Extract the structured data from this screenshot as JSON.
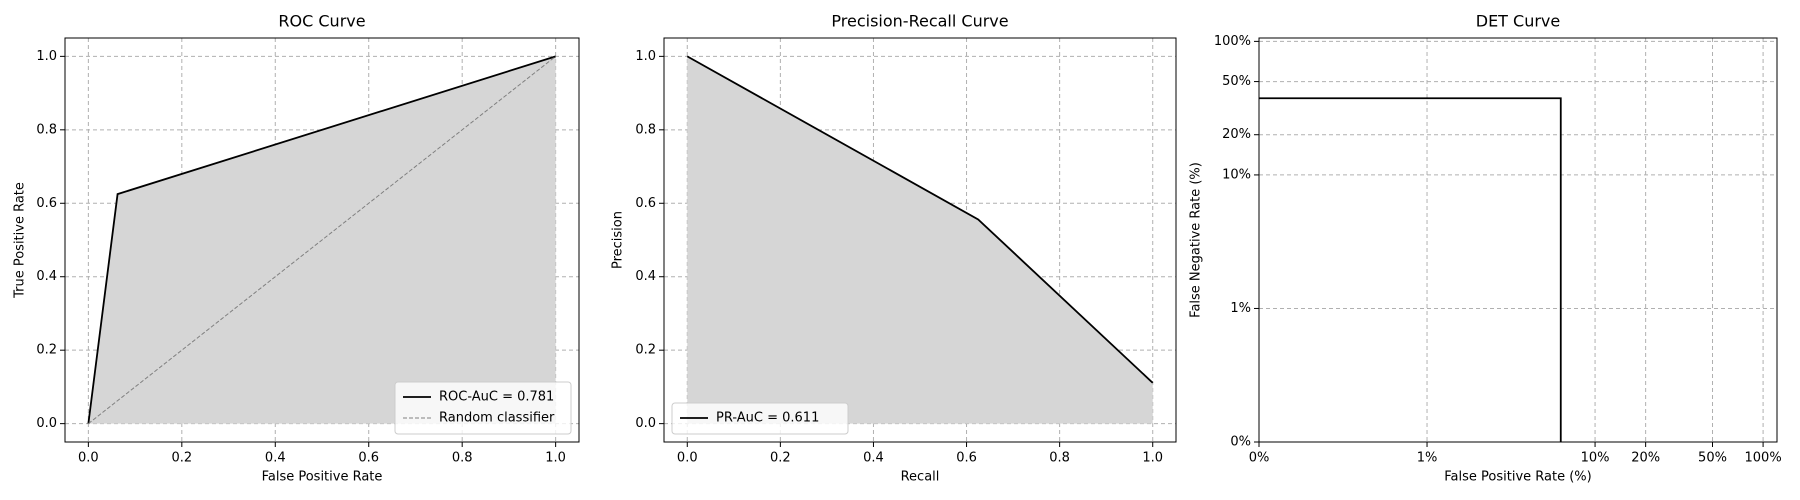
{
  "chart_data": [
    {
      "type": "line",
      "title": "ROC Curve",
      "x_label": "False Positive Rate",
      "y_label": "True Positive Rate",
      "series": [
        {
          "name": "ROC-AuC = 0.781",
          "color": "#000000",
          "style": "solid",
          "fill_color": "#d6d6d6",
          "x": [
            0,
            0.0625,
            1
          ],
          "values": [
            0,
            0.625,
            1
          ]
        },
        {
          "name": "Random classifier",
          "color": "#808080",
          "style": "dashed",
          "x": [
            0,
            1
          ],
          "values": [
            0,
            1
          ]
        }
      ],
      "xlim": [
        -0.05,
        1.05
      ],
      "ylim": [
        -0.05,
        1.05
      ],
      "xticks": [
        {
          "value": 0,
          "label": "0.0"
        },
        0.2,
        0.4,
        0.6,
        0.8,
        {
          "value": 1,
          "label": "1.0"
        }
      ],
      "yticks": [
        {
          "value": 0,
          "label": "0.0"
        },
        0.2,
        0.4,
        0.6,
        0.8,
        {
          "value": 1,
          "label": "1.0"
        }
      ],
      "grid": true,
      "legend": "lower right"
    },
    {
      "type": "line",
      "title": "Precision-Recall Curve",
      "x_label": "Recall",
      "y_label": "Precision",
      "series": [
        {
          "name": "PR-AuC = 0.611",
          "color": "#000000",
          "style": "solid",
          "fill_color": "#d6d6d6",
          "x": [
            0,
            0.625,
            1
          ],
          "values": [
            1,
            0.556,
            0.111
          ]
        }
      ],
      "xlim": [
        -0.05,
        1.05
      ],
      "ylim": [
        -0.05,
        1.05
      ],
      "xticks": [
        {
          "value": 0,
          "label": "0.0"
        },
        0.2,
        0.4,
        0.6,
        0.8,
        {
          "value": 1,
          "label": "1.0"
        }
      ],
      "yticks": [
        {
          "value": 0,
          "label": "0.0"
        },
        0.2,
        0.4,
        0.6,
        0.8,
        {
          "value": 1,
          "label": "1.0"
        }
      ],
      "grid": true,
      "legend": "lower left"
    },
    {
      "type": "line",
      "title": "DET Curve",
      "x_label": "False Positive Rate (%)",
      "y_label": "False Negative Rate (%)",
      "series": [
        {
          "color": "#000000",
          "style": "solid",
          "x": [
            0.1,
            6.25,
            6.25
          ],
          "values": [
            37.5,
            37.5,
            0.1
          ]
        }
      ],
      "xlog": true,
      "ylog": true,
      "xlim": [
        0.1,
        121
      ],
      "ylim": [
        0.1,
        106
      ],
      "xticks": [
        {
          "value": 0.1,
          "label": "0%"
        },
        {
          "value": 1,
          "label": "1%"
        },
        {
          "value": 10,
          "label": "10%"
        },
        {
          "value": 20,
          "label": "20%"
        },
        {
          "value": 50,
          "label": "50%"
        },
        {
          "value": 100,
          "label": "100%"
        }
      ],
      "yticks": [
        {
          "value": 0.1,
          "label": "0%"
        },
        {
          "value": 1,
          "label": "1%"
        },
        {
          "value": 10,
          "label": "10%"
        },
        {
          "value": 20,
          "label": "20%"
        },
        {
          "value": 50,
          "label": "50%"
        },
        {
          "value": 100,
          "label": "100%"
        }
      ],
      "grid": true
    }
  ]
}
